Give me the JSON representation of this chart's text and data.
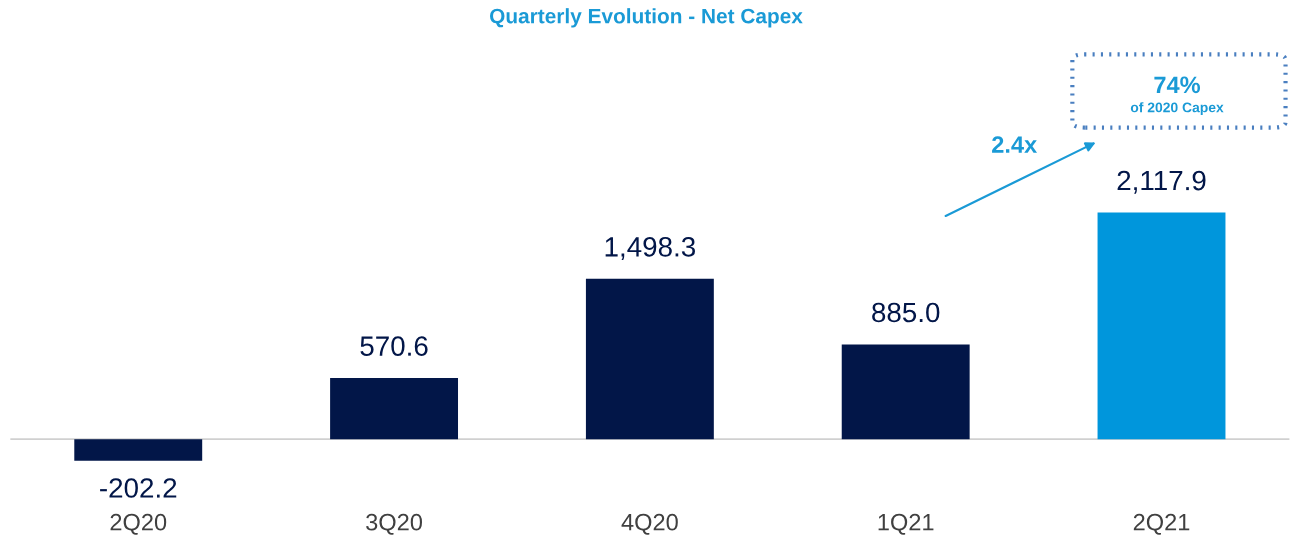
{
  "chart_data": {
    "type": "bar",
    "title": "Quarterly Evolution - Net Capex",
    "categories": [
      "2Q20",
      "3Q20",
      "4Q20",
      "1Q21",
      "2Q21"
    ],
    "values": [
      -202.2,
      570.6,
      1498.3,
      885.0,
      2117.9
    ],
    "value_labels": [
      "-202.2",
      "570.6",
      "1,498.3",
      "885.0",
      "2,117.9"
    ],
    "colors": [
      "#021648",
      "#021648",
      "#021648",
      "#021648",
      "#0096dc"
    ],
    "annotations": [
      "74%",
      "of 2020 Capex",
      "2.4x"
    ],
    "grid": false,
    "legend": false
  }
}
